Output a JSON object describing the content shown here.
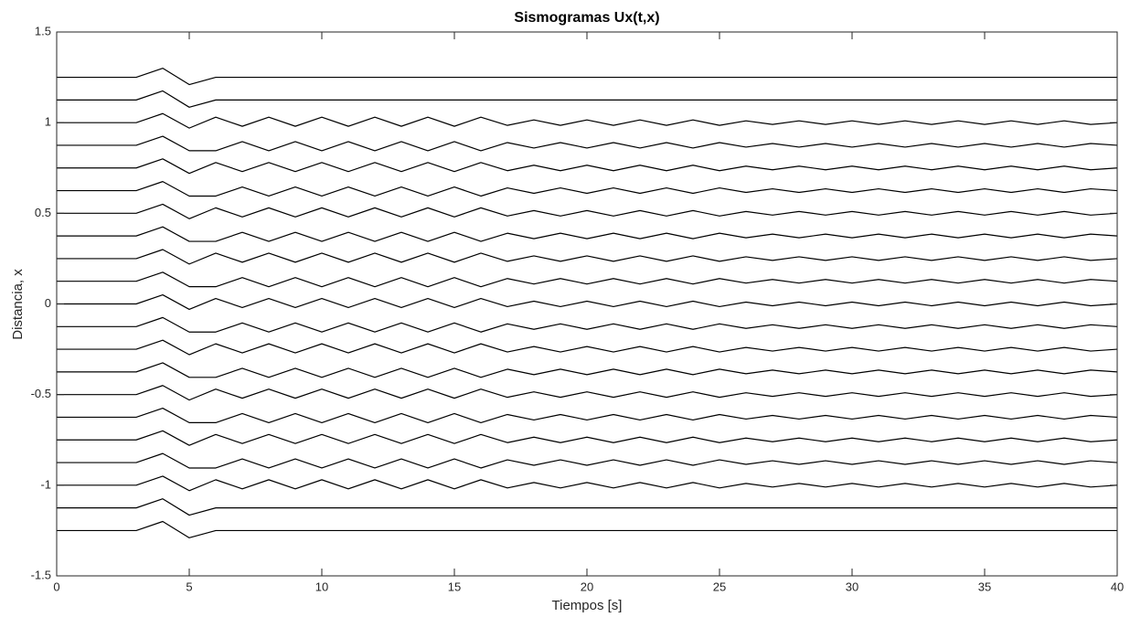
{
  "chart_data": {
    "type": "line",
    "title": "Sismogramas Ux(t,x)",
    "x_label": "Tiempos [s]",
    "y_label": "Distancia, x",
    "xlim": [
      0,
      40
    ],
    "ylim": [
      -1.5,
      1.5
    ],
    "xticks": [
      0,
      5,
      10,
      15,
      20,
      25,
      30,
      35,
      40
    ],
    "yticks": [
      -1.5,
      -1,
      -0.5,
      0,
      0.5,
      1,
      1.5
    ],
    "grid": false,
    "x": [
      0,
      1,
      2,
      3,
      4,
      5,
      6,
      7,
      8,
      9,
      10,
      11,
      12,
      13,
      14,
      15,
      16,
      17,
      18,
      19,
      20,
      21,
      22,
      23,
      24,
      25,
      26,
      27,
      28,
      29,
      30,
      31,
      32,
      33,
      34,
      35,
      36,
      37,
      38,
      39,
      40
    ],
    "series": [
      {
        "color": "#000000",
        "values": [
          -1.25,
          -1.25,
          -1.25,
          -1.25,
          -1.2,
          -1.29,
          -1.25,
          -1.25,
          -1.25,
          -1.25,
          -1.25,
          -1.25,
          -1.25,
          -1.25,
          -1.25,
          -1.25,
          -1.25,
          -1.25,
          -1.25,
          -1.25,
          -1.25,
          -1.25,
          -1.25,
          -1.25,
          -1.25,
          -1.25,
          -1.25,
          -1.25,
          -1.25,
          -1.25,
          -1.25,
          -1.25,
          -1.25,
          -1.25,
          -1.25,
          -1.25,
          -1.25,
          -1.25,
          -1.25,
          -1.25,
          -1.25
        ]
      },
      {
        "color": "#000000",
        "values": [
          -1.125,
          -1.125,
          -1.125,
          -1.125,
          -1.075,
          -1.165,
          -1.125,
          -1.125,
          -1.125,
          -1.125,
          -1.125,
          -1.125,
          -1.125,
          -1.125,
          -1.125,
          -1.125,
          -1.125,
          -1.125,
          -1.125,
          -1.125,
          -1.125,
          -1.125,
          -1.125,
          -1.125,
          -1.125,
          -1.125,
          -1.125,
          -1.125,
          -1.125,
          -1.125,
          -1.125,
          -1.125,
          -1.125,
          -1.125,
          -1.125,
          -1.125,
          -1.125,
          -1.125,
          -1.125,
          -1.125,
          -1.125
        ]
      },
      {
        "color": "#000000",
        "values": [
          -1,
          -1,
          -1,
          -1,
          -0.95,
          -1.03,
          -0.97,
          -1.02,
          -0.97,
          -1.02,
          -0.97,
          -1.02,
          -0.97,
          -1.02,
          -0.97,
          -1.02,
          -0.97,
          -1.015,
          -0.985,
          -1.015,
          -0.985,
          -1.015,
          -0.985,
          -1.015,
          -0.985,
          -1.015,
          -0.99,
          -1.01,
          -0.99,
          -1.01,
          -0.99,
          -1.01,
          -0.99,
          -1.01,
          -0.99,
          -1.01,
          -0.99,
          -1.01,
          -0.99,
          -1.01,
          -1
        ]
      },
      {
        "color": "#000000",
        "values": [
          -0.875,
          -0.875,
          -0.875,
          -0.875,
          -0.825,
          -0.905,
          -0.905,
          -0.855,
          -0.905,
          -0.855,
          -0.905,
          -0.855,
          -0.905,
          -0.855,
          -0.905,
          -0.855,
          -0.905,
          -0.86,
          -0.89,
          -0.86,
          -0.89,
          -0.86,
          -0.89,
          -0.86,
          -0.89,
          -0.86,
          -0.885,
          -0.865,
          -0.885,
          -0.865,
          -0.885,
          -0.865,
          -0.885,
          -0.865,
          -0.885,
          -0.865,
          -0.885,
          -0.865,
          -0.885,
          -0.865,
          -0.875
        ]
      },
      {
        "color": "#000000",
        "values": [
          -0.75,
          -0.75,
          -0.75,
          -0.75,
          -0.7,
          -0.78,
          -0.72,
          -0.77,
          -0.72,
          -0.77,
          -0.72,
          -0.77,
          -0.72,
          -0.77,
          -0.72,
          -0.77,
          -0.72,
          -0.765,
          -0.735,
          -0.765,
          -0.735,
          -0.765,
          -0.735,
          -0.765,
          -0.735,
          -0.765,
          -0.74,
          -0.76,
          -0.74,
          -0.76,
          -0.74,
          -0.76,
          -0.74,
          -0.76,
          -0.74,
          -0.76,
          -0.74,
          -0.76,
          -0.74,
          -0.76,
          -0.75
        ]
      },
      {
        "color": "#000000",
        "values": [
          -0.625,
          -0.625,
          -0.625,
          -0.625,
          -0.575,
          -0.655,
          -0.655,
          -0.605,
          -0.655,
          -0.605,
          -0.655,
          -0.605,
          -0.655,
          -0.605,
          -0.655,
          -0.605,
          -0.655,
          -0.61,
          -0.64,
          -0.61,
          -0.64,
          -0.61,
          -0.64,
          -0.61,
          -0.64,
          -0.61,
          -0.635,
          -0.615,
          -0.635,
          -0.615,
          -0.635,
          -0.615,
          -0.635,
          -0.615,
          -0.635,
          -0.615,
          -0.635,
          -0.615,
          -0.635,
          -0.615,
          -0.625
        ]
      },
      {
        "color": "#000000",
        "values": [
          -0.5,
          -0.5,
          -0.5,
          -0.5,
          -0.45,
          -0.53,
          -0.47,
          -0.52,
          -0.47,
          -0.52,
          -0.47,
          -0.52,
          -0.47,
          -0.52,
          -0.47,
          -0.52,
          -0.47,
          -0.515,
          -0.485,
          -0.515,
          -0.485,
          -0.515,
          -0.485,
          -0.515,
          -0.485,
          -0.515,
          -0.49,
          -0.51,
          -0.49,
          -0.51,
          -0.49,
          -0.51,
          -0.49,
          -0.51,
          -0.49,
          -0.51,
          -0.49,
          -0.51,
          -0.49,
          -0.51,
          -0.5
        ]
      },
      {
        "color": "#000000",
        "values": [
          -0.375,
          -0.375,
          -0.375,
          -0.375,
          -0.325,
          -0.405,
          -0.405,
          -0.355,
          -0.405,
          -0.355,
          -0.405,
          -0.355,
          -0.405,
          -0.355,
          -0.405,
          -0.355,
          -0.405,
          -0.36,
          -0.39,
          -0.36,
          -0.39,
          -0.36,
          -0.39,
          -0.36,
          -0.39,
          -0.36,
          -0.385,
          -0.365,
          -0.385,
          -0.365,
          -0.385,
          -0.365,
          -0.385,
          -0.365,
          -0.385,
          -0.365,
          -0.385,
          -0.365,
          -0.385,
          -0.365,
          -0.375
        ]
      },
      {
        "color": "#000000",
        "values": [
          -0.25,
          -0.25,
          -0.25,
          -0.25,
          -0.2,
          -0.28,
          -0.22,
          -0.27,
          -0.22,
          -0.27,
          -0.22,
          -0.27,
          -0.22,
          -0.27,
          -0.22,
          -0.27,
          -0.22,
          -0.265,
          -0.235,
          -0.265,
          -0.235,
          -0.265,
          -0.235,
          -0.265,
          -0.235,
          -0.265,
          -0.24,
          -0.26,
          -0.24,
          -0.26,
          -0.24,
          -0.26,
          -0.24,
          -0.26,
          -0.24,
          -0.26,
          -0.24,
          -0.26,
          -0.24,
          -0.26,
          -0.25
        ]
      },
      {
        "color": "#000000",
        "values": [
          -0.125,
          -0.125,
          -0.125,
          -0.125,
          -0.075,
          -0.155,
          -0.155,
          -0.105,
          -0.155,
          -0.105,
          -0.155,
          -0.105,
          -0.155,
          -0.105,
          -0.155,
          -0.105,
          -0.155,
          -0.11,
          -0.14,
          -0.11,
          -0.14,
          -0.11,
          -0.14,
          -0.11,
          -0.14,
          -0.11,
          -0.135,
          -0.115,
          -0.135,
          -0.115,
          -0.135,
          -0.115,
          -0.135,
          -0.115,
          -0.135,
          -0.115,
          -0.135,
          -0.115,
          -0.135,
          -0.115,
          -0.125
        ]
      },
      {
        "color": "#000000",
        "values": [
          0,
          0,
          0,
          0,
          0.05,
          -0.03,
          0.03,
          -0.02,
          0.03,
          -0.02,
          0.03,
          -0.02,
          0.03,
          -0.02,
          0.03,
          -0.02,
          0.03,
          -0.015,
          0.015,
          -0.015,
          0.015,
          -0.015,
          0.015,
          -0.015,
          0.015,
          -0.015,
          0.01,
          -0.01,
          0.01,
          -0.01,
          0.01,
          -0.01,
          0.01,
          -0.01,
          0.01,
          -0.01,
          0.01,
          -0.01,
          0.01,
          -0.01,
          0
        ]
      },
      {
        "color": "#000000",
        "values": [
          0.125,
          0.125,
          0.125,
          0.125,
          0.175,
          0.095,
          0.095,
          0.145,
          0.095,
          0.145,
          0.095,
          0.145,
          0.095,
          0.145,
          0.095,
          0.145,
          0.095,
          0.14,
          0.11,
          0.14,
          0.11,
          0.14,
          0.11,
          0.14,
          0.11,
          0.14,
          0.115,
          0.135,
          0.115,
          0.135,
          0.115,
          0.135,
          0.115,
          0.135,
          0.115,
          0.135,
          0.115,
          0.135,
          0.115,
          0.135,
          0.125
        ]
      },
      {
        "color": "#000000",
        "values": [
          0.25,
          0.25,
          0.25,
          0.25,
          0.3,
          0.22,
          0.28,
          0.23,
          0.28,
          0.23,
          0.28,
          0.23,
          0.28,
          0.23,
          0.28,
          0.23,
          0.28,
          0.235,
          0.265,
          0.235,
          0.265,
          0.235,
          0.265,
          0.235,
          0.265,
          0.235,
          0.26,
          0.24,
          0.26,
          0.24,
          0.26,
          0.24,
          0.26,
          0.24,
          0.26,
          0.24,
          0.26,
          0.24,
          0.26,
          0.24,
          0.25
        ]
      },
      {
        "color": "#000000",
        "values": [
          0.375,
          0.375,
          0.375,
          0.375,
          0.425,
          0.345,
          0.345,
          0.395,
          0.345,
          0.395,
          0.345,
          0.395,
          0.345,
          0.395,
          0.345,
          0.395,
          0.345,
          0.39,
          0.36,
          0.39,
          0.36,
          0.39,
          0.36,
          0.39,
          0.36,
          0.39,
          0.365,
          0.385,
          0.365,
          0.385,
          0.365,
          0.385,
          0.365,
          0.385,
          0.365,
          0.385,
          0.365,
          0.385,
          0.365,
          0.385,
          0.375
        ]
      },
      {
        "color": "#000000",
        "values": [
          0.5,
          0.5,
          0.5,
          0.5,
          0.55,
          0.47,
          0.53,
          0.48,
          0.53,
          0.48,
          0.53,
          0.48,
          0.53,
          0.48,
          0.53,
          0.48,
          0.53,
          0.485,
          0.515,
          0.485,
          0.515,
          0.485,
          0.515,
          0.485,
          0.515,
          0.485,
          0.51,
          0.49,
          0.51,
          0.49,
          0.51,
          0.49,
          0.51,
          0.49,
          0.51,
          0.49,
          0.51,
          0.49,
          0.51,
          0.49,
          0.5
        ]
      },
      {
        "color": "#000000",
        "values": [
          0.625,
          0.625,
          0.625,
          0.625,
          0.675,
          0.595,
          0.595,
          0.645,
          0.595,
          0.645,
          0.595,
          0.645,
          0.595,
          0.645,
          0.595,
          0.645,
          0.595,
          0.64,
          0.61,
          0.64,
          0.61,
          0.64,
          0.61,
          0.64,
          0.61,
          0.64,
          0.615,
          0.635,
          0.615,
          0.635,
          0.615,
          0.635,
          0.615,
          0.635,
          0.615,
          0.635,
          0.615,
          0.635,
          0.615,
          0.635,
          0.625
        ]
      },
      {
        "color": "#000000",
        "values": [
          0.75,
          0.75,
          0.75,
          0.75,
          0.8,
          0.72,
          0.78,
          0.73,
          0.78,
          0.73,
          0.78,
          0.73,
          0.78,
          0.73,
          0.78,
          0.73,
          0.78,
          0.735,
          0.765,
          0.735,
          0.765,
          0.735,
          0.765,
          0.735,
          0.765,
          0.735,
          0.76,
          0.74,
          0.76,
          0.74,
          0.76,
          0.74,
          0.76,
          0.74,
          0.76,
          0.74,
          0.76,
          0.74,
          0.76,
          0.74,
          0.75
        ]
      },
      {
        "color": "#000000",
        "values": [
          0.875,
          0.875,
          0.875,
          0.875,
          0.925,
          0.845,
          0.845,
          0.895,
          0.845,
          0.895,
          0.845,
          0.895,
          0.845,
          0.895,
          0.845,
          0.895,
          0.845,
          0.89,
          0.86,
          0.89,
          0.86,
          0.89,
          0.86,
          0.89,
          0.86,
          0.89,
          0.865,
          0.885,
          0.865,
          0.885,
          0.865,
          0.885,
          0.865,
          0.885,
          0.865,
          0.885,
          0.865,
          0.885,
          0.865,
          0.885,
          0.875
        ]
      },
      {
        "color": "#000000",
        "values": [
          1,
          1,
          1,
          1,
          1.05,
          0.97,
          1.03,
          0.98,
          1.03,
          0.98,
          1.03,
          0.98,
          1.03,
          0.98,
          1.03,
          0.98,
          1.03,
          0.985,
          1.015,
          0.985,
          1.015,
          0.985,
          1.015,
          0.985,
          1.015,
          0.985,
          1.01,
          0.99,
          1.01,
          0.99,
          1.01,
          0.99,
          1.01,
          0.99,
          1.01,
          0.99,
          1.01,
          0.99,
          1.01,
          0.99,
          1
        ]
      },
      {
        "color": "#000000",
        "values": [
          1.125,
          1.125,
          1.125,
          1.125,
          1.175,
          1.085,
          1.125,
          1.125,
          1.125,
          1.125,
          1.125,
          1.125,
          1.125,
          1.125,
          1.125,
          1.125,
          1.125,
          1.125,
          1.125,
          1.125,
          1.125,
          1.125,
          1.125,
          1.125,
          1.125,
          1.125,
          1.125,
          1.125,
          1.125,
          1.125,
          1.125,
          1.125,
          1.125,
          1.125,
          1.125,
          1.125,
          1.125,
          1.125,
          1.125,
          1.125,
          1.125
        ]
      },
      {
        "color": "#000000",
        "values": [
          1.25,
          1.25,
          1.25,
          1.25,
          1.3,
          1.21,
          1.25,
          1.25,
          1.25,
          1.25,
          1.25,
          1.25,
          1.25,
          1.25,
          1.25,
          1.25,
          1.25,
          1.25,
          1.25,
          1.25,
          1.25,
          1.25,
          1.25,
          1.25,
          1.25,
          1.25,
          1.25,
          1.25,
          1.25,
          1.25,
          1.25,
          1.25,
          1.25,
          1.25,
          1.25,
          1.25,
          1.25,
          1.25,
          1.25,
          1.25,
          1.25
        ]
      }
    ]
  }
}
